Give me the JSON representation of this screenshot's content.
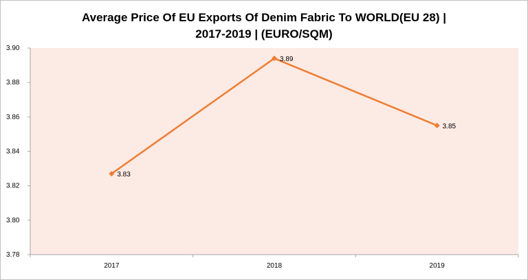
{
  "chart_data": {
    "type": "line",
    "title_lines": [
      "Average Price Of EU Exports Of Denim Fabric To WORLD(EU 28) |",
      "2017-2019 | (EURO/SQM)"
    ],
    "categories": [
      "2017",
      "2018",
      "2019"
    ],
    "series": [
      {
        "values": [
          3.827,
          3.894,
          3.855
        ],
        "labels": [
          "3.83",
          "3.89",
          "3.85"
        ]
      }
    ],
    "ylim": [
      3.78,
      3.9
    ],
    "yticks": [
      "3.78",
      "3.80",
      "3.82",
      "3.84",
      "3.86",
      "3.88",
      "3.90"
    ],
    "xlabel": "",
    "ylabel": "",
    "grid": false,
    "legend": "none",
    "colors": {
      "line": "#ED7D31",
      "plot_bg": "#FCEAE4",
      "axis": "#A6A6A6"
    }
  }
}
